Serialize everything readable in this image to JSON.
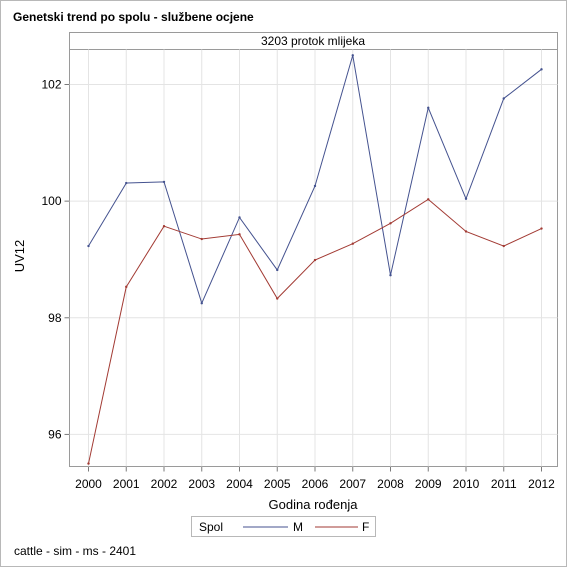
{
  "title": "Genetski trend po spolu - službene ocjene",
  "footnote": "cattle - sim - ms - 2401",
  "chart_data": {
    "type": "line",
    "panel_label": "3203 protok mlijeka",
    "xlabel": "Godina rođenja",
    "ylabel": "UV12",
    "x": [
      "2000",
      "2001",
      "2002",
      "2003",
      "2004",
      "2005",
      "2006",
      "2007",
      "2008",
      "2009",
      "2010",
      "2011",
      "2012"
    ],
    "yticks": [
      "96",
      "98",
      "100",
      "102"
    ],
    "ylim": [
      95.45,
      102.6
    ],
    "grid": true,
    "legend": {
      "title": "Spol",
      "position": "bottom-center"
    },
    "series": [
      {
        "name": "M",
        "color": "#44528f",
        "values": [
          99.23,
          100.31,
          100.33,
          98.25,
          99.72,
          98.82,
          100.26,
          102.5,
          98.73,
          101.6,
          100.04,
          101.76,
          102.26
        ]
      },
      {
        "name": "F",
        "color": "#a23a33",
        "values": [
          95.5,
          98.53,
          99.57,
          99.35,
          99.43,
          98.33,
          98.99,
          99.27,
          99.62,
          100.03,
          99.48,
          99.23,
          99.53
        ]
      }
    ]
  }
}
